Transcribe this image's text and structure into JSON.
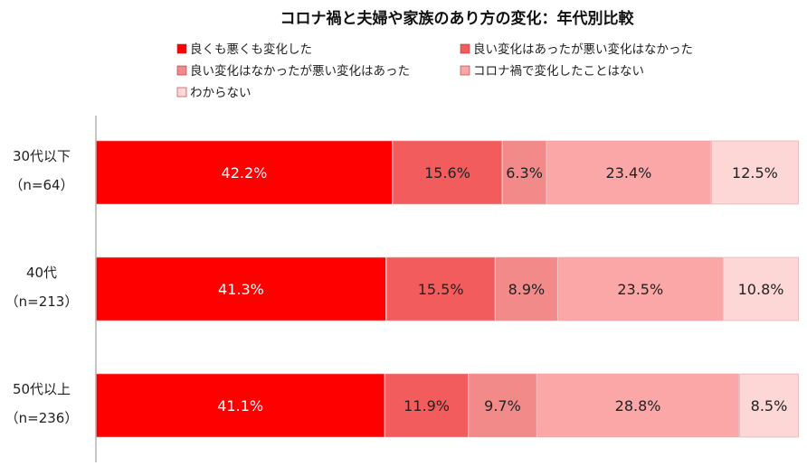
{
  "chart_data": {
    "type": "bar",
    "orientation": "horizontal",
    "stacked": "percent",
    "title": "コロナ禍と夫婦や家族のあり方の変化：年代別比較",
    "categories": [
      {
        "label": "30代以下",
        "n": "（n=64）"
      },
      {
        "label": "40代",
        "n": "（n=213）"
      },
      {
        "label": "50代以上",
        "n": "（n=236）"
      }
    ],
    "series": [
      {
        "name": "良くも悪くも変化した",
        "color": "#ff0000",
        "label_color": "#ffffff",
        "values": [
          42.2,
          41.3,
          41.1
        ]
      },
      {
        "name": "良い変化はあったが悪い変化はなかった",
        "color": "#f25c5c",
        "label_color": "#222222",
        "values": [
          15.6,
          15.5,
          11.9
        ]
      },
      {
        "name": "良い変化はなかったが悪い変化はあった",
        "color": "#f28a8a",
        "label_color": "#222222",
        "values": [
          6.3,
          8.9,
          9.7
        ]
      },
      {
        "name": "コロナ禍で変化したことはない",
        "color": "#fba7a7",
        "label_color": "#222222",
        "values": [
          23.4,
          23.5,
          28.8
        ]
      },
      {
        "name": "わからない",
        "color": "#fdd6d6",
        "label_color": "#222222",
        "values": [
          12.5,
          10.8,
          8.5
        ]
      }
    ],
    "value_suffix": "%",
    "legend_position": "top",
    "grid": false
  }
}
